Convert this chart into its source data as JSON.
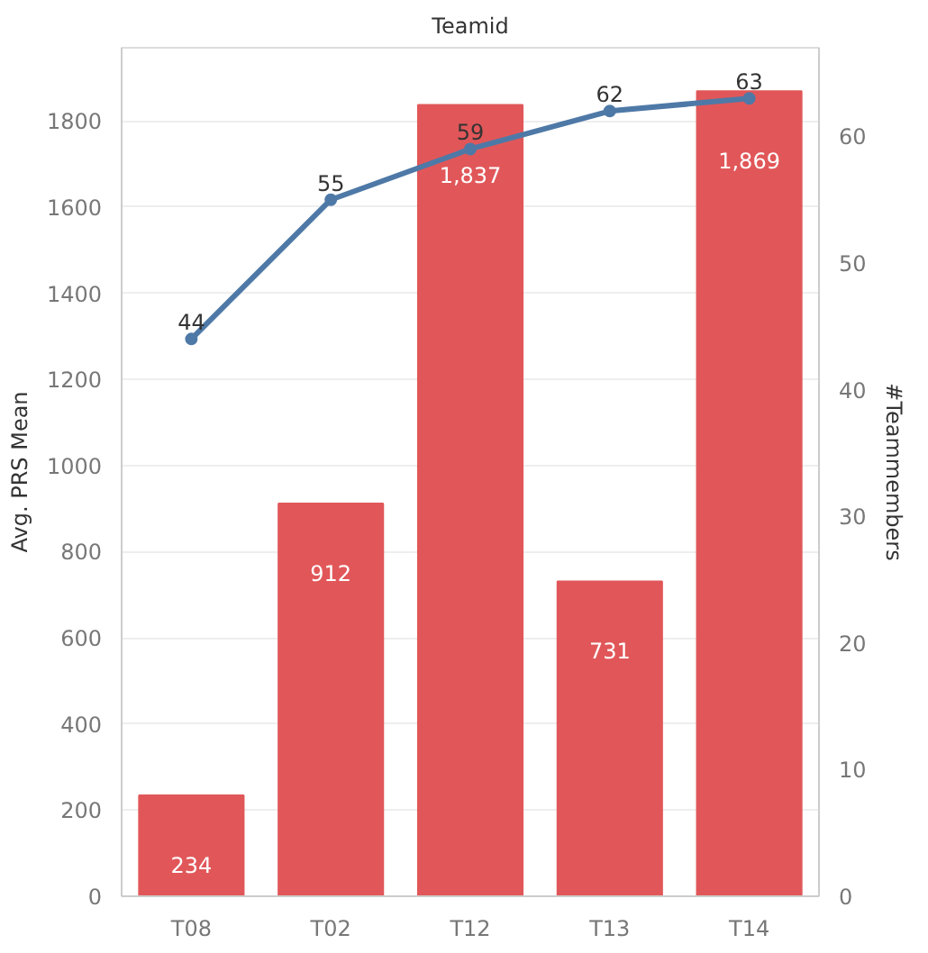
{
  "chart_data": {
    "type": "bar",
    "title": "Teamid",
    "ylabel": "Avg. PRS Mean",
    "y2label": "#Teammembers",
    "categories": [
      "T08",
      "T02",
      "T12",
      "T13",
      "T14"
    ],
    "series": [
      {
        "name": null,
        "color": "#e15759",
        "values": [
          234,
          912,
          1837,
          731,
          1869
        ],
        "value_labels": [
          "234",
          "912",
          "1,837",
          "731",
          "1,869"
        ]
      },
      {
        "name": null,
        "type": "line",
        "axis": "y2",
        "color": "#4e79a7",
        "marker": "circle",
        "values": [
          44,
          55,
          59,
          62,
          63
        ],
        "value_labels": [
          "44",
          "55",
          "59",
          "62",
          "63"
        ]
      }
    ],
    "ylim": [
      0,
      1970
    ],
    "yticks": [
      0,
      200,
      400,
      600,
      800,
      1000,
      1200,
      1400,
      1600,
      1800
    ],
    "y2lim": [
      0,
      67
    ],
    "y2ticks": [
      0,
      10,
      20,
      30,
      40,
      50,
      60
    ],
    "grid": "y"
  }
}
